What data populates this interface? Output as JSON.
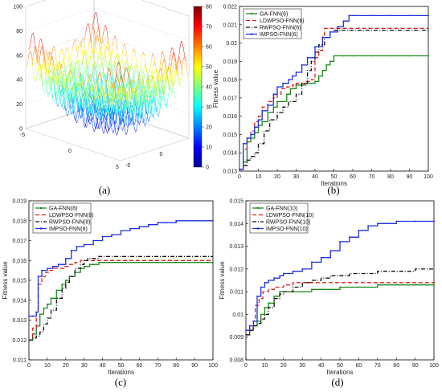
{
  "panel_labels": [
    "(a)",
    "(b)",
    "(c)",
    "(d)"
  ],
  "chart_data": [
    {
      "panel": "(a)",
      "type": "surface",
      "title": "",
      "colorbar": {
        "min": 0,
        "max": 80,
        "ticks": [
          "80",
          "70",
          "60",
          "50",
          "40",
          "30",
          "20",
          "10",
          "0"
        ]
      },
      "z_ticks": [
        "100",
        "80",
        "60",
        "40",
        "20",
        "0"
      ],
      "x_ticks": [
        "-5",
        "0",
        "5"
      ],
      "y_ticks": [
        "-5",
        "0",
        "5"
      ]
    },
    {
      "panel": "(b)",
      "type": "line",
      "xlabel": "Iterations",
      "ylabel": "Fitness value",
      "xlim": [
        0,
        100
      ],
      "ylim": [
        0.013,
        0.022
      ],
      "x_ticks": [
        "0",
        "10",
        "20",
        "30",
        "40",
        "50",
        "60",
        "70",
        "80",
        "90",
        "100"
      ],
      "y_ticks": [
        "0.013",
        "0.014",
        "0.015",
        "0.016",
        "0.017",
        "0.018",
        "0.019",
        "0.02",
        "0.021",
        "0.022"
      ],
      "legend_position": "top-left",
      "series": [
        {
          "name": "GA-FNN(6)",
          "color": "#1a8c1a",
          "dash": "solid",
          "marker": "dot",
          "x": [
            0,
            2,
            4,
            6,
            8,
            10,
            12,
            15,
            18,
            20,
            25,
            27,
            30,
            32,
            35,
            38,
            40,
            42,
            44,
            46,
            48,
            50,
            55,
            60,
            70,
            80,
            90,
            100
          ],
          "y": [
            0.0131,
            0.0135,
            0.0146,
            0.0148,
            0.0151,
            0.0155,
            0.0157,
            0.0162,
            0.0165,
            0.0168,
            0.0172,
            0.0175,
            0.0177,
            0.0177,
            0.0178,
            0.0178,
            0.0179,
            0.0182,
            0.0185,
            0.0188,
            0.019,
            0.0193,
            0.0193,
            0.0193,
            0.0193,
            0.0193,
            0.0193,
            0.0193
          ]
        },
        {
          "name": "LDWPSO-FNN(6)",
          "color": "#e21f1f",
          "dash": "dashed",
          "marker": "none",
          "x": [
            0,
            2,
            4,
            6,
            8,
            10,
            12,
            15,
            18,
            20,
            22,
            25,
            28,
            30,
            32,
            35,
            38,
            40,
            42,
            44,
            45,
            47,
            50,
            60,
            70,
            80,
            90,
            100
          ],
          "y": [
            0.0131,
            0.0142,
            0.0148,
            0.0152,
            0.0157,
            0.016,
            0.0165,
            0.0168,
            0.017,
            0.0172,
            0.0175,
            0.0176,
            0.0177,
            0.0178,
            0.0178,
            0.0179,
            0.018,
            0.0192,
            0.0196,
            0.0204,
            0.0208,
            0.0208,
            0.0208,
            0.0208,
            0.0208,
            0.0208,
            0.0208,
            0.0208
          ]
        },
        {
          "name": "RWPSO-FNN(6)",
          "color": "#111111",
          "dash": "dashdot",
          "marker": "none",
          "x": [
            0,
            2,
            4,
            6,
            8,
            10,
            13,
            16,
            20,
            23,
            26,
            30,
            33,
            36,
            38,
            40,
            42,
            45,
            48,
            50,
            55,
            60,
            70,
            80,
            90,
            100
          ],
          "y": [
            0.0131,
            0.0133,
            0.0136,
            0.0138,
            0.014,
            0.0145,
            0.0152,
            0.0158,
            0.0162,
            0.0165,
            0.0168,
            0.0172,
            0.0178,
            0.0185,
            0.019,
            0.0195,
            0.0199,
            0.0203,
            0.0206,
            0.0207,
            0.0207,
            0.0207,
            0.0207,
            0.0207,
            0.0207,
            0.0207
          ]
        },
        {
          "name": "IMPSO-FNN(6)",
          "color": "#1f2fe0",
          "dash": "solid",
          "marker": "dot",
          "x": [
            0,
            2,
            4,
            6,
            8,
            10,
            12,
            15,
            18,
            20,
            23,
            26,
            28,
            30,
            33,
            36,
            40,
            44,
            48,
            52,
            55,
            58,
            60,
            70,
            80,
            90,
            100
          ],
          "y": [
            0.0131,
            0.0145,
            0.0148,
            0.015,
            0.0154,
            0.0158,
            0.0163,
            0.0166,
            0.0172,
            0.0176,
            0.0178,
            0.018,
            0.0182,
            0.0184,
            0.0188,
            0.0192,
            0.0198,
            0.0203,
            0.0206,
            0.0209,
            0.0212,
            0.0215,
            0.0215,
            0.0215,
            0.0215,
            0.0215,
            0.0215
          ]
        }
      ]
    },
    {
      "panel": "(c)",
      "type": "line",
      "xlabel": "Iterations",
      "ylabel": "Fitness value",
      "xlim": [
        0,
        100
      ],
      "ylim": [
        0.011,
        0.019
      ],
      "x_ticks": [
        "0",
        "10",
        "20",
        "30",
        "40",
        "50",
        "60",
        "70",
        "80",
        "90",
        "100"
      ],
      "y_ticks": [
        "0.011",
        "0.012",
        "0.013",
        "0.014",
        "0.015",
        "0.016",
        "0.017",
        "0.018",
        "0.019"
      ],
      "legend_position": "top-left",
      "series": [
        {
          "name": "GA-FNN(8)",
          "color": "#1a8c1a",
          "dash": "solid",
          "marker": "dot",
          "x": [
            0,
            2,
            4,
            6,
            8,
            10,
            12,
            15,
            18,
            20,
            22,
            25,
            28,
            30,
            33,
            35,
            38,
            40,
            50,
            60,
            70,
            80,
            90,
            100
          ],
          "y": [
            0.012,
            0.0123,
            0.0127,
            0.0133,
            0.0136,
            0.0138,
            0.0141,
            0.0145,
            0.0148,
            0.015,
            0.0152,
            0.0154,
            0.0156,
            0.0157,
            0.0158,
            0.0158,
            0.0159,
            0.0159,
            0.0159,
            0.0159,
            0.0159,
            0.0159,
            0.0159,
            0.0159
          ]
        },
        {
          "name": "LDWPSO-FNN(8)",
          "color": "#e21f1f",
          "dash": "dashed",
          "marker": "none",
          "x": [
            0,
            2,
            4,
            5,
            7,
            9,
            11,
            13,
            16,
            19,
            22,
            25,
            28,
            31,
            35,
            40,
            50,
            60,
            70,
            80,
            90,
            100
          ],
          "y": [
            0.012,
            0.0126,
            0.0135,
            0.0148,
            0.0152,
            0.0154,
            0.0155,
            0.0156,
            0.0156,
            0.0157,
            0.0158,
            0.0159,
            0.016,
            0.016,
            0.016,
            0.016,
            0.016,
            0.016,
            0.016,
            0.016,
            0.016,
            0.016
          ]
        },
        {
          "name": "RWPSO-FNN(8)",
          "color": "#111111",
          "dash": "dashdot",
          "marker": "none",
          "x": [
            0,
            2,
            4,
            6,
            8,
            10,
            12,
            15,
            18,
            20,
            22,
            25,
            28,
            30,
            32,
            35,
            38,
            40,
            50,
            60,
            70,
            80,
            90,
            100
          ],
          "y": [
            0.012,
            0.0121,
            0.0122,
            0.0124,
            0.0128,
            0.0131,
            0.0135,
            0.0141,
            0.0146,
            0.0149,
            0.0152,
            0.0156,
            0.0158,
            0.016,
            0.0161,
            0.0161,
            0.0162,
            0.0162,
            0.0162,
            0.0162,
            0.0162,
            0.0162,
            0.0162,
            0.0162
          ]
        },
        {
          "name": "IMPSO-FNN(8)",
          "color": "#1f2fe0",
          "dash": "solid",
          "marker": "dot",
          "x": [
            0,
            2,
            4,
            5,
            7,
            10,
            13,
            16,
            20,
            23,
            26,
            30,
            35,
            40,
            45,
            50,
            55,
            60,
            65,
            70,
            75,
            80,
            85,
            90,
            100
          ],
          "y": [
            0.0132,
            0.0132,
            0.0134,
            0.0152,
            0.0155,
            0.0156,
            0.0157,
            0.0158,
            0.0161,
            0.0165,
            0.0167,
            0.0168,
            0.017,
            0.0172,
            0.0173,
            0.0175,
            0.0176,
            0.0177,
            0.0178,
            0.0179,
            0.0179,
            0.018,
            0.018,
            0.018,
            0.018
          ]
        }
      ]
    },
    {
      "panel": "(d)",
      "type": "line",
      "xlabel": "Iterations",
      "ylabel": "Fitness value",
      "xlim": [
        0,
        100
      ],
      "ylim": [
        0.008,
        0.015
      ],
      "x_ticks": [
        "0",
        "10",
        "20",
        "30",
        "40",
        "50",
        "60",
        "70",
        "80",
        "90",
        "100"
      ],
      "y_ticks": [
        "0.008",
        "0.009",
        "0.01",
        "0.011",
        "0.012",
        "0.013",
        "0.014",
        "0.015"
      ],
      "legend_position": "top-left",
      "series": [
        {
          "name": "GA-FNN(10)",
          "color": "#1a8c1a",
          "dash": "solid",
          "marker": "dot",
          "x": [
            0,
            2,
            4,
            6,
            8,
            10,
            12,
            15,
            18,
            20,
            25,
            30,
            35,
            40,
            50,
            60,
            70,
            80,
            90,
            100
          ],
          "y": [
            0.0091,
            0.0093,
            0.0095,
            0.0097,
            0.01,
            0.0103,
            0.0105,
            0.0108,
            0.011,
            0.011,
            0.011,
            0.011,
            0.0111,
            0.0111,
            0.0112,
            0.0112,
            0.0113,
            0.0113,
            0.0113,
            0.0114
          ]
        },
        {
          "name": "LDWPSO-FNN(10)",
          "color": "#e21f1f",
          "dash": "dashed",
          "marker": "none",
          "x": [
            0,
            2,
            4,
            5,
            7,
            9,
            12,
            15,
            18,
            20,
            25,
            30,
            40,
            50,
            60,
            70,
            80,
            90,
            100
          ],
          "y": [
            0.0091,
            0.0094,
            0.0097,
            0.0104,
            0.0107,
            0.011,
            0.0111,
            0.0112,
            0.0112,
            0.0113,
            0.0114,
            0.0114,
            0.0114,
            0.0114,
            0.0114,
            0.0114,
            0.0114,
            0.0114,
            0.0114
          ]
        },
        {
          "name": "RWPSO-FNN(10)",
          "color": "#111111",
          "dash": "dashdot",
          "marker": "none",
          "x": [
            0,
            2,
            4,
            6,
            8,
            10,
            12,
            15,
            18,
            20,
            25,
            30,
            35,
            40,
            45,
            50,
            55,
            60,
            70,
            80,
            90,
            100
          ],
          "y": [
            0.0091,
            0.0093,
            0.0095,
            0.0096,
            0.0098,
            0.01,
            0.0103,
            0.0107,
            0.0109,
            0.011,
            0.0112,
            0.0114,
            0.0115,
            0.0116,
            0.0117,
            0.0117,
            0.0118,
            0.0118,
            0.0119,
            0.0119,
            0.012,
            0.012
          ]
        },
        {
          "name": "IMPSO-FNN(10)",
          "color": "#1f2fe0",
          "dash": "solid",
          "marker": "dot",
          "x": [
            0,
            2,
            4,
            6,
            8,
            10,
            12,
            15,
            18,
            20,
            25,
            30,
            35,
            40,
            45,
            50,
            55,
            60,
            65,
            70,
            75,
            80,
            90,
            100
          ],
          "y": [
            0.0093,
            0.0095,
            0.0097,
            0.0108,
            0.0112,
            0.0114,
            0.0115,
            0.0116,
            0.0117,
            0.0118,
            0.0119,
            0.012,
            0.0123,
            0.0125,
            0.0128,
            0.0132,
            0.0134,
            0.0137,
            0.0139,
            0.014,
            0.014,
            0.0141,
            0.0141,
            0.0141
          ]
        }
      ]
    }
  ]
}
